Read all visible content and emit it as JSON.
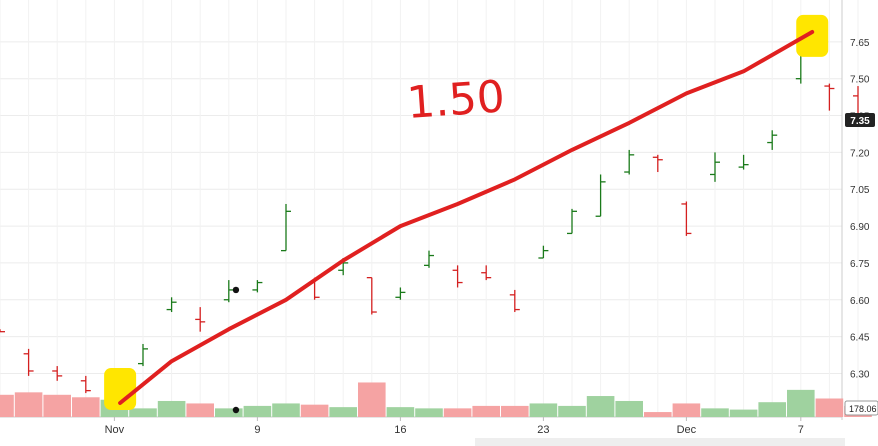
{
  "chart_data": {
    "type": "ohlc",
    "y_ticks": [
      "6.30",
      "6.45",
      "6.60",
      "6.75",
      "6.90",
      "7.05",
      "7.20",
      "7.35",
      "7.50",
      "7.65"
    ],
    "ylim": [
      6.2,
      7.8
    ],
    "x_tick_labels": [
      "Nov",
      "9",
      "16",
      "23",
      "Dec",
      "7"
    ],
    "last_price_label": "7.35",
    "volume_label": "178.06",
    "grid": true,
    "annotation_text": "1.50",
    "colors": {
      "up": "#1a7a1a",
      "down": "#d42020",
      "vol_up": "#9fd29f",
      "vol_down": "#f5a3a3",
      "annotation": "#e02020",
      "highlight": "#ffe600"
    },
    "bars": [
      {
        "o": 6.48,
        "h": 6.48,
        "l": 6.47,
        "c": 6.47,
        "dir": "down",
        "vol": 18
      },
      {
        "o": 6.38,
        "h": 6.4,
        "l": 6.29,
        "c": 6.31,
        "dir": "down",
        "vol": 20
      },
      {
        "o": 6.31,
        "h": 6.33,
        "l": 6.27,
        "c": 6.29,
        "dir": "down",
        "vol": 18
      },
      {
        "o": 6.27,
        "h": 6.29,
        "l": 6.22,
        "c": 6.23,
        "dir": "down",
        "vol": 16
      },
      {
        "o": 6.24,
        "h": 6.28,
        "l": 6.2,
        "c": 6.27,
        "dir": "up",
        "vol": 14
      },
      {
        "o": 6.34,
        "h": 6.42,
        "l": 6.33,
        "c": 6.4,
        "dir": "up",
        "vol": 7
      },
      {
        "o": 6.56,
        "h": 6.61,
        "l": 6.55,
        "c": 6.59,
        "dir": "up",
        "vol": 13
      },
      {
        "o": 6.52,
        "h": 6.57,
        "l": 6.47,
        "c": 6.51,
        "dir": "down",
        "vol": 11
      },
      {
        "o": 6.6,
        "h": 6.68,
        "l": 6.59,
        "c": 6.64,
        "dir": "up",
        "vol": 7
      },
      {
        "o": 6.64,
        "h": 6.68,
        "l": 6.63,
        "c": 6.67,
        "dir": "up",
        "vol": 9
      },
      {
        "o": 6.8,
        "h": 6.99,
        "l": 6.8,
        "c": 6.96,
        "dir": "up",
        "vol": 11
      },
      {
        "o": 6.67,
        "h": 6.69,
        "l": 6.6,
        "c": 6.61,
        "dir": "down",
        "vol": 10
      },
      {
        "o": 6.72,
        "h": 6.77,
        "l": 6.7,
        "c": 6.75,
        "dir": "up",
        "vol": 8
      },
      {
        "o": 6.69,
        "h": 6.69,
        "l": 6.54,
        "c": 6.55,
        "dir": "down",
        "vol": 28
      },
      {
        "o": 6.61,
        "h": 6.65,
        "l": 6.6,
        "c": 6.63,
        "dir": "up",
        "vol": 8
      },
      {
        "o": 6.74,
        "h": 6.8,
        "l": 6.73,
        "c": 6.78,
        "dir": "up",
        "vol": 7
      },
      {
        "o": 6.72,
        "h": 6.74,
        "l": 6.65,
        "c": 6.67,
        "dir": "down",
        "vol": 7
      },
      {
        "o": 6.71,
        "h": 6.74,
        "l": 6.68,
        "c": 6.69,
        "dir": "down",
        "vol": 9
      },
      {
        "o": 6.62,
        "h": 6.64,
        "l": 6.55,
        "c": 6.56,
        "dir": "down",
        "vol": 9
      },
      {
        "o": 6.77,
        "h": 6.82,
        "l": 6.77,
        "c": 6.8,
        "dir": "up",
        "vol": 11
      },
      {
        "o": 6.87,
        "h": 6.97,
        "l": 6.87,
        "c": 6.96,
        "dir": "up",
        "vol": 9
      },
      {
        "o": 6.94,
        "h": 7.11,
        "l": 6.94,
        "c": 7.08,
        "dir": "up",
        "vol": 17
      },
      {
        "o": 7.12,
        "h": 7.21,
        "l": 7.11,
        "c": 7.19,
        "dir": "up",
        "vol": 13
      },
      {
        "o": 7.18,
        "h": 7.19,
        "l": 7.12,
        "c": 7.17,
        "dir": "down",
        "vol": 4
      },
      {
        "o": 6.99,
        "h": 7.0,
        "l": 6.86,
        "c": 6.87,
        "dir": "down",
        "vol": 11
      },
      {
        "o": 7.11,
        "h": 7.2,
        "l": 7.08,
        "c": 7.16,
        "dir": "up",
        "vol": 7
      },
      {
        "o": 7.14,
        "h": 7.19,
        "l": 7.13,
        "c": 7.15,
        "dir": "up",
        "vol": 6
      },
      {
        "o": 7.24,
        "h": 7.29,
        "l": 7.21,
        "c": 7.27,
        "dir": "up",
        "vol": 12
      },
      {
        "o": 7.5,
        "h": 7.7,
        "l": 7.48,
        "c": 7.66,
        "dir": "up",
        "vol": 22
      },
      {
        "o": 7.47,
        "h": 7.48,
        "l": 7.37,
        "c": 7.46,
        "dir": "down",
        "vol": 15
      },
      {
        "o": 7.43,
        "h": 7.47,
        "l": 7.33,
        "c": 7.35,
        "dir": "down",
        "vol": 9
      }
    ],
    "trend_line": [
      {
        "bar": 4.2,
        "price": 6.22
      },
      {
        "bar": 6,
        "price": 6.35
      },
      {
        "bar": 8,
        "price": 6.48
      },
      {
        "bar": 10,
        "price": 6.6
      },
      {
        "bar": 12,
        "price": 6.76
      },
      {
        "bar": 14,
        "price": 6.9
      },
      {
        "bar": 16,
        "price": 6.99
      },
      {
        "bar": 18,
        "price": 7.09
      },
      {
        "bar": 20,
        "price": 7.21
      },
      {
        "bar": 22,
        "price": 7.32
      },
      {
        "bar": 24,
        "price": 7.44
      },
      {
        "bar": 26,
        "price": 7.53
      },
      {
        "bar": 28.4,
        "price": 7.69
      }
    ],
    "highlights": [
      {
        "bar": 4.2,
        "price": 6.28
      },
      {
        "bar": 28.4,
        "price": 7.67
      }
    ],
    "markers": [
      {
        "bar": 8.25,
        "price": 6.64
      },
      {
        "bar": 8.25,
        "vol_dot": true
      }
    ]
  }
}
